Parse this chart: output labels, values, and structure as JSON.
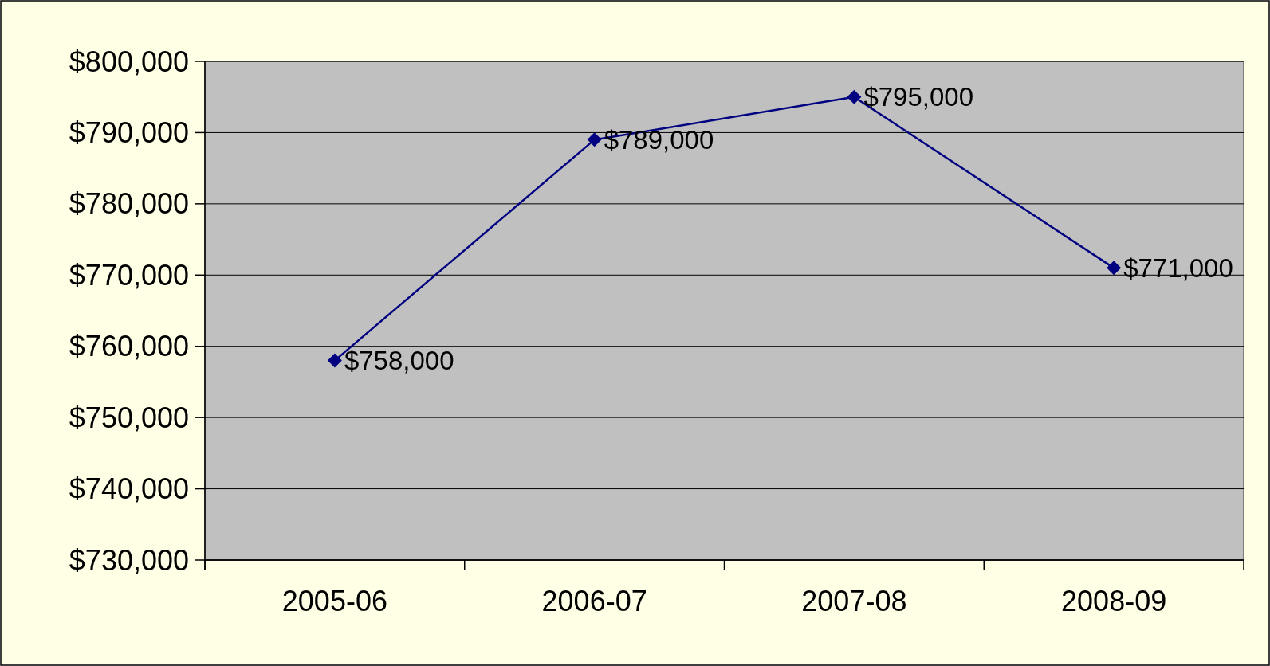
{
  "chart_data": {
    "type": "line",
    "categories": [
      "2005-06",
      "2006-07",
      "2007-08",
      "2008-09"
    ],
    "series": [
      {
        "color": "#000080",
        "values": [
          758000,
          789000,
          795000,
          771000
        ],
        "value_labels": [
          "$758,000",
          "$789,000",
          "$795,000",
          "$771,000"
        ]
      }
    ],
    "ylim": [
      730000,
      800000
    ],
    "yticks": [
      {
        "value": 730000,
        "label": "$730,000"
      },
      {
        "value": 740000,
        "label": "$740,000"
      },
      {
        "value": 750000,
        "label": "$750,000"
      },
      {
        "value": 760000,
        "label": "$760,000"
      },
      {
        "value": 770000,
        "label": "$770,000"
      },
      {
        "value": 780000,
        "label": "$780,000"
      },
      {
        "value": 790000,
        "label": "$790,000"
      },
      {
        "value": 800000,
        "label": "$800,000"
      }
    ],
    "grid": "y",
    "marker": "diamond",
    "line_style": "solid"
  }
}
